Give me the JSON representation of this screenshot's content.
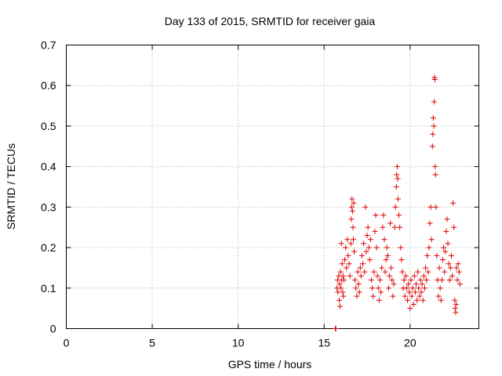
{
  "chart_data": {
    "type": "scatter",
    "title": "Day 133 of 2015, SRMTID for receiver gaia",
    "xlabel": "GPS time / hours",
    "ylabel": "SRMTID / TECUs",
    "xlim": [
      0,
      24
    ],
    "ylim": [
      0,
      0.7
    ],
    "xticks": [
      0,
      5,
      10,
      15,
      20
    ],
    "yticks": [
      0,
      0.1,
      0.2,
      0.3,
      0.4,
      0.5,
      0.6,
      0.7
    ],
    "grid": true,
    "marker": "+",
    "color": "#e00000",
    "series": [
      {
        "name": "SRMTID",
        "points": [
          [
            15.65,
            0.0
          ],
          [
            15.66,
            0.0
          ],
          [
            15.68,
            0.0
          ],
          [
            15.75,
            0.1
          ],
          [
            15.78,
            0.12
          ],
          [
            15.8,
            0.09
          ],
          [
            15.85,
            0.13
          ],
          [
            15.88,
            0.07
          ],
          [
            15.9,
            0.11
          ],
          [
            15.92,
            0.055
          ],
          [
            15.95,
            0.14
          ],
          [
            15.98,
            0.1
          ],
          [
            16.0,
            0.21
          ],
          [
            16.02,
            0.12
          ],
          [
            16.05,
            0.16
          ],
          [
            16.08,
            0.09
          ],
          [
            16.1,
            0.13
          ],
          [
            16.12,
            0.08
          ],
          [
            16.15,
            0.12
          ],
          [
            16.2,
            0.17
          ],
          [
            16.25,
            0.2
          ],
          [
            16.3,
            0.15
          ],
          [
            16.35,
            0.22
          ],
          [
            16.4,
            0.18
          ],
          [
            16.45,
            0.16
          ],
          [
            16.5,
            0.13
          ],
          [
            16.55,
            0.21
          ],
          [
            16.58,
            0.27
          ],
          [
            16.6,
            0.3
          ],
          [
            16.62,
            0.32
          ],
          [
            16.65,
            0.29
          ],
          [
            16.68,
            0.25
          ],
          [
            16.7,
            0.22
          ],
          [
            16.72,
            0.31
          ],
          [
            16.75,
            0.19
          ],
          [
            16.8,
            0.12
          ],
          [
            16.85,
            0.1
          ],
          [
            16.9,
            0.08
          ],
          [
            16.95,
            0.14
          ],
          [
            17.0,
            0.11
          ],
          [
            17.05,
            0.09
          ],
          [
            17.1,
            0.15
          ],
          [
            17.15,
            0.13
          ],
          [
            17.2,
            0.18
          ],
          [
            17.25,
            0.16
          ],
          [
            17.3,
            0.21
          ],
          [
            17.35,
            0.14
          ],
          [
            17.4,
            0.3
          ],
          [
            17.45,
            0.19
          ],
          [
            17.5,
            0.23
          ],
          [
            17.55,
            0.25
          ],
          [
            17.6,
            0.2
          ],
          [
            17.65,
            0.17
          ],
          [
            17.7,
            0.22
          ],
          [
            17.75,
            0.12
          ],
          [
            17.8,
            0.1
          ],
          [
            17.85,
            0.08
          ],
          [
            17.9,
            0.14
          ],
          [
            17.95,
            0.24
          ],
          [
            18.0,
            0.28
          ],
          [
            18.05,
            0.2
          ],
          [
            18.1,
            0.13
          ],
          [
            18.15,
            0.1
          ],
          [
            18.2,
            0.07
          ],
          [
            18.25,
            0.12
          ],
          [
            18.3,
            0.09
          ],
          [
            18.35,
            0.15
          ],
          [
            18.4,
            0.25
          ],
          [
            18.45,
            0.28
          ],
          [
            18.5,
            0.22
          ],
          [
            18.55,
            0.14
          ],
          [
            18.6,
            0.17
          ],
          [
            18.65,
            0.2
          ],
          [
            18.7,
            0.18
          ],
          [
            18.75,
            0.1
          ],
          [
            18.8,
            0.13
          ],
          [
            18.85,
            0.26
          ],
          [
            18.9,
            0.15
          ],
          [
            18.95,
            0.12
          ],
          [
            19.0,
            0.08
          ],
          [
            19.05,
            0.11
          ],
          [
            19.1,
            0.25
          ],
          [
            19.15,
            0.3
          ],
          [
            19.2,
            0.35
          ],
          [
            19.22,
            0.38
          ],
          [
            19.25,
            0.4
          ],
          [
            19.28,
            0.37
          ],
          [
            19.3,
            0.32
          ],
          [
            19.35,
            0.28
          ],
          [
            19.4,
            0.25
          ],
          [
            19.45,
            0.2
          ],
          [
            19.5,
            0.17
          ],
          [
            19.55,
            0.14
          ],
          [
            19.6,
            0.1
          ],
          [
            19.65,
            0.12
          ],
          [
            19.7,
            0.08
          ],
          [
            19.75,
            0.13
          ],
          [
            19.8,
            0.1
          ],
          [
            19.85,
            0.07
          ],
          [
            19.9,
            0.11
          ],
          [
            19.95,
            0.09
          ],
          [
            20.0,
            0.05
          ],
          [
            20.05,
            0.12
          ],
          [
            20.1,
            0.08
          ],
          [
            20.15,
            0.1
          ],
          [
            20.2,
            0.06
          ],
          [
            20.25,
            0.13
          ],
          [
            20.3,
            0.09
          ],
          [
            20.35,
            0.11
          ],
          [
            20.4,
            0.07
          ],
          [
            20.45,
            0.14
          ],
          [
            20.5,
            0.1
          ],
          [
            20.55,
            0.08
          ],
          [
            20.6,
            0.12
          ],
          [
            20.65,
            0.09
          ],
          [
            20.7,
            0.11
          ],
          [
            20.75,
            0.07
          ],
          [
            20.8,
            0.13
          ],
          [
            20.85,
            0.1
          ],
          [
            20.9,
            0.15
          ],
          [
            20.95,
            0.12
          ],
          [
            21.0,
            0.18
          ],
          [
            21.05,
            0.14
          ],
          [
            21.1,
            0.2
          ],
          [
            21.15,
            0.26
          ],
          [
            21.2,
            0.3
          ],
          [
            21.25,
            0.22
          ],
          [
            21.3,
            0.45
          ],
          [
            21.32,
            0.48
          ],
          [
            21.35,
            0.52
          ],
          [
            21.38,
            0.5
          ],
          [
            21.4,
            0.56
          ],
          [
            21.42,
            0.62
          ],
          [
            21.44,
            0.615
          ],
          [
            21.46,
            0.4
          ],
          [
            21.48,
            0.38
          ],
          [
            21.5,
            0.3
          ],
          [
            21.55,
            0.18
          ],
          [
            21.6,
            0.12
          ],
          [
            21.65,
            0.08
          ],
          [
            21.7,
            0.15
          ],
          [
            21.75,
            0.1
          ],
          [
            21.8,
            0.07
          ],
          [
            21.85,
            0.12
          ],
          [
            21.9,
            0.17
          ],
          [
            21.95,
            0.2
          ],
          [
            22.0,
            0.14
          ],
          [
            22.05,
            0.19
          ],
          [
            22.1,
            0.24
          ],
          [
            22.15,
            0.27
          ],
          [
            22.2,
            0.21
          ],
          [
            22.25,
            0.16
          ],
          [
            22.3,
            0.12
          ],
          [
            22.35,
            0.15
          ],
          [
            22.4,
            0.18
          ],
          [
            22.45,
            0.13
          ],
          [
            22.5,
            0.31
          ],
          [
            22.55,
            0.25
          ],
          [
            22.6,
            0.07
          ],
          [
            22.62,
            0.05
          ],
          [
            22.65,
            0.04
          ],
          [
            22.68,
            0.06
          ],
          [
            22.7,
            0.15
          ],
          [
            22.75,
            0.12
          ],
          [
            22.8,
            0.16
          ],
          [
            22.85,
            0.14
          ],
          [
            22.9,
            0.11
          ]
        ]
      }
    ]
  }
}
